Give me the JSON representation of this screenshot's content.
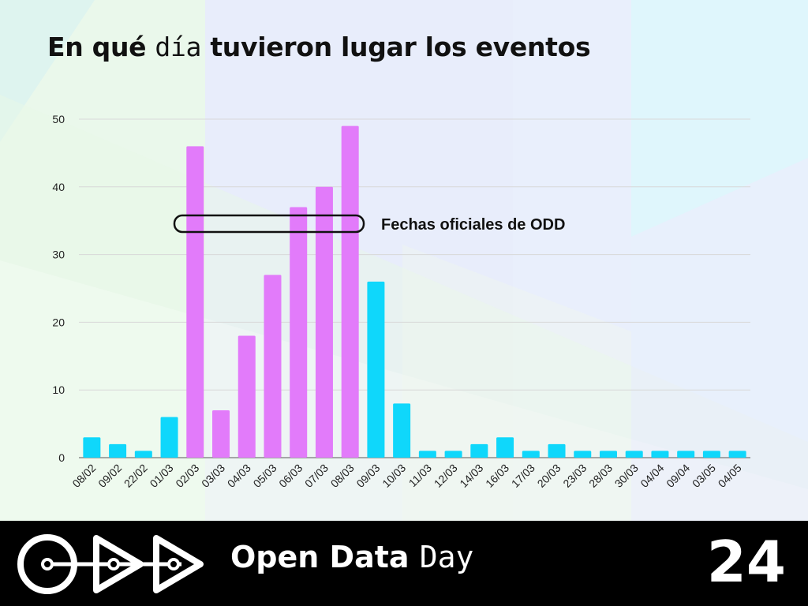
{
  "title": {
    "part1": "En qué ",
    "part2": "día",
    "part3": " tuvieron lugar los eventos"
  },
  "annotation": {
    "text": "Fechas oficiales de ODD"
  },
  "footer": {
    "brand_bold": "Open Data ",
    "brand_light": "Day",
    "page_number": "24"
  },
  "colors": {
    "official": "#e27bfa",
    "other": "#0fd7fb",
    "grid": "#d8d8d8",
    "text": "#111111"
  },
  "chart_data": {
    "type": "bar",
    "title": "En qué día tuvieron lugar los eventos",
    "categories": [
      "08/02",
      "09/02",
      "22/02",
      "01/03",
      "02/03",
      "03/03",
      "04/03",
      "05/03",
      "06/03",
      "07/03",
      "08/03",
      "09/03",
      "10/03",
      "11/03",
      "12/03",
      "14/03",
      "16/03",
      "17/03",
      "20/03",
      "23/03",
      "28/03",
      "30/03",
      "04/04",
      "09/04",
      "03/05",
      "04/05"
    ],
    "values": [
      3,
      2,
      1,
      6,
      46,
      7,
      18,
      27,
      37,
      40,
      49,
      26,
      8,
      1,
      1,
      2,
      3,
      1,
      2,
      1,
      1,
      1,
      1,
      1,
      1,
      1
    ],
    "highlighted": [
      "02/03",
      "03/03",
      "04/03",
      "05/03",
      "06/03",
      "07/03",
      "08/03"
    ],
    "ylim": [
      0,
      50
    ],
    "yticks": [
      0,
      10,
      20,
      30,
      40,
      50
    ],
    "xlabel": "",
    "ylabel": "",
    "grid": true,
    "legend": "none"
  }
}
